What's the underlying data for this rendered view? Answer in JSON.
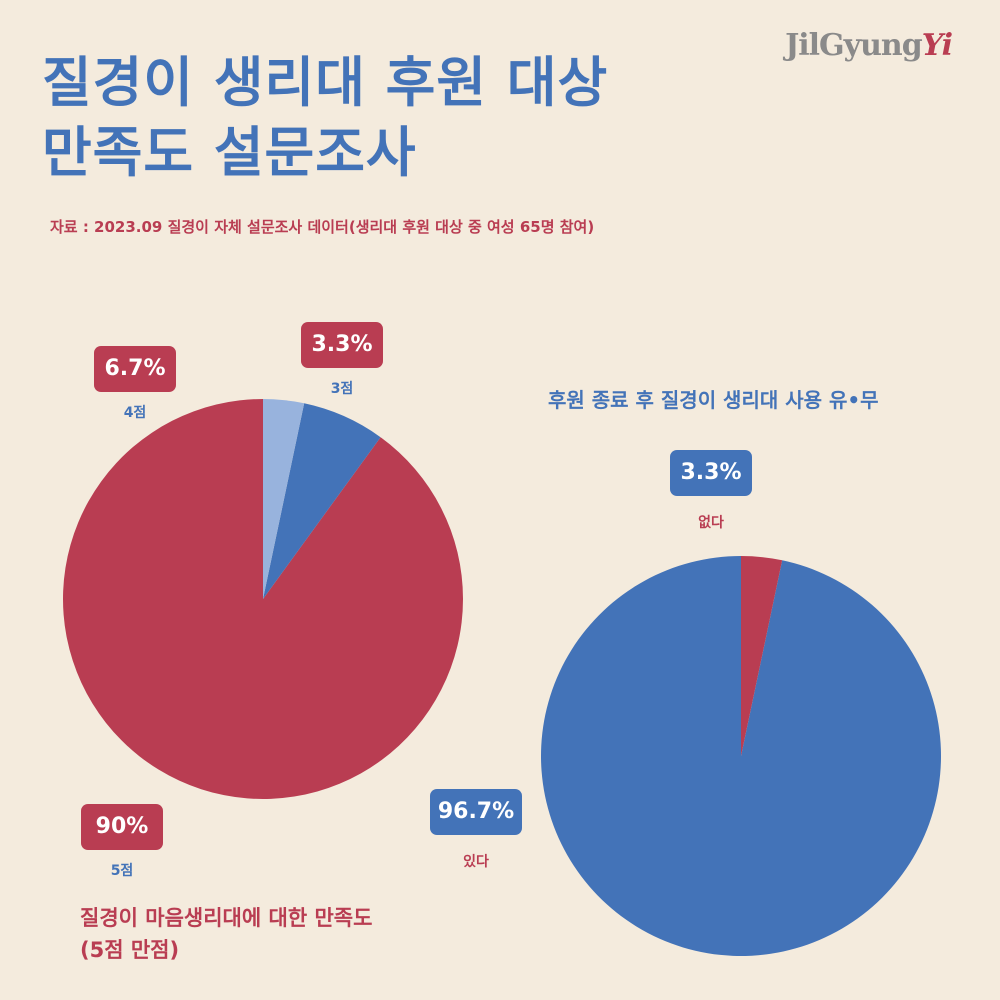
{
  "header": {
    "title_line1": "질경이 생리대 후원 대상",
    "title_line2": "만족도 설문조사",
    "source": "자료 : 2023.09 질경이 자체 설문조사 데이터(생리대 후원 대상 중 여성 65명 참여)",
    "logo_main": "JilGyung",
    "logo_accent": "Yi"
  },
  "colors": {
    "red": "#b93d52",
    "blue": "#4373b8",
    "light_blue": "#98b3dd",
    "background": "#f4ebdd"
  },
  "chart_data": [
    {
      "type": "pie",
      "title_line1": "질경이 마음생리대에 대한 만족도",
      "title_line2": "(5점 만점)",
      "slices": [
        {
          "label": "5점",
          "value": 90,
          "display": "90%",
          "color": "#b93d52"
        },
        {
          "label": "4점",
          "value": 6.7,
          "display": "6.7%",
          "color": "#4373b8"
        },
        {
          "label": "3점",
          "value": 3.3,
          "display": "3.3%",
          "color": "#98b3dd"
        }
      ]
    },
    {
      "type": "pie",
      "title": "후원 종료 후 질경이 생리대 사용 유•무",
      "slices": [
        {
          "label": "있다",
          "value": 96.7,
          "display": "96.7%",
          "color": "#4373b8"
        },
        {
          "label": "없다",
          "value": 3.3,
          "display": "3.3%",
          "color": "#b93d52"
        }
      ]
    }
  ]
}
